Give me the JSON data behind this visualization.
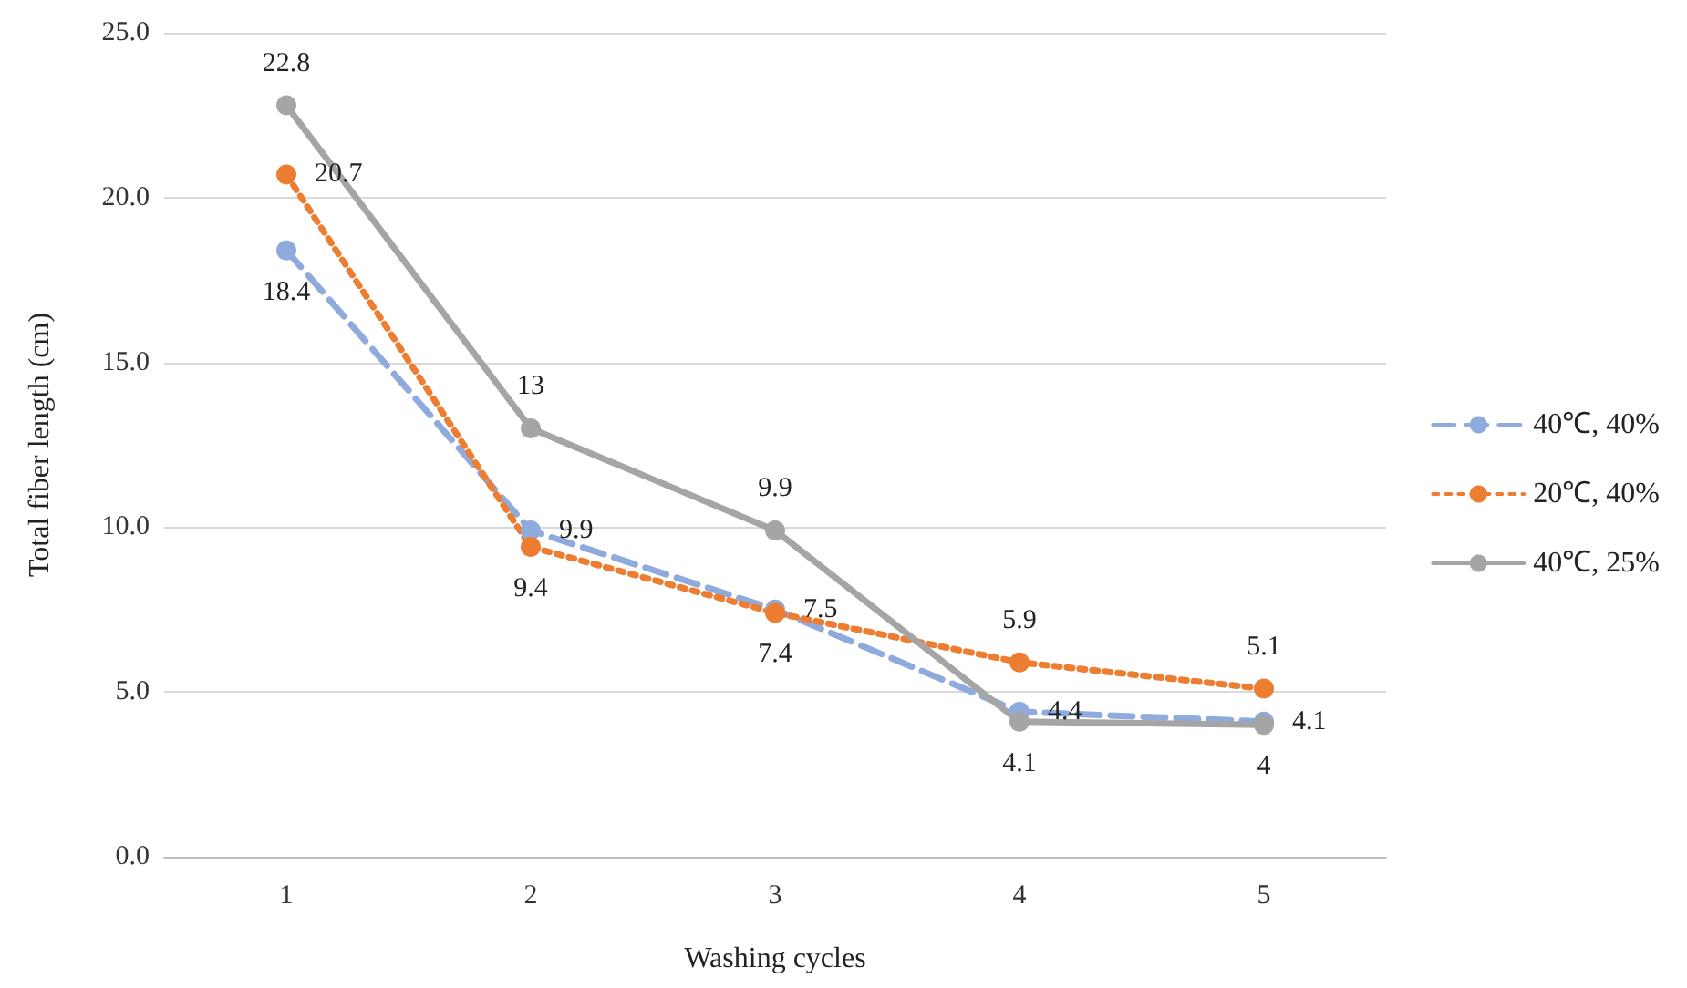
{
  "chart_data": {
    "type": "line",
    "xlabel": "Washing cycles",
    "ylabel": "Total fiber length (cm)",
    "categories": [
      "1",
      "2",
      "3",
      "4",
      "5"
    ],
    "series": [
      {
        "name": "40℃, 40%",
        "color": "#8faadc",
        "line_style": "dashed",
        "values": [
          18.4,
          9.9,
          7.5,
          4.4,
          4.1
        ]
      },
      {
        "name": "20℃, 40%",
        "color": "#ed7d31",
        "line_style": "dotted",
        "values": [
          20.7,
          9.4,
          7.4,
          5.9,
          5.1
        ]
      },
      {
        "name": "40℃, 25%",
        "color": "#a5a5a5",
        "line_style": "solid",
        "values": [
          22.8,
          13,
          9.9,
          4.1,
          4
        ]
      }
    ],
    "ylim": [
      0,
      25
    ],
    "yticks": [
      {
        "value": 0,
        "label": "0.0"
      },
      {
        "value": 5,
        "label": "5.0"
      },
      {
        "value": 10,
        "label": "10.0"
      },
      {
        "value": 15,
        "label": "15.0"
      },
      {
        "value": 20,
        "label": "20.0"
      },
      {
        "value": 25,
        "label": "25.0"
      }
    ],
    "grid": "y",
    "legend": "right",
    "marker": "circle",
    "data_labels": true
  }
}
